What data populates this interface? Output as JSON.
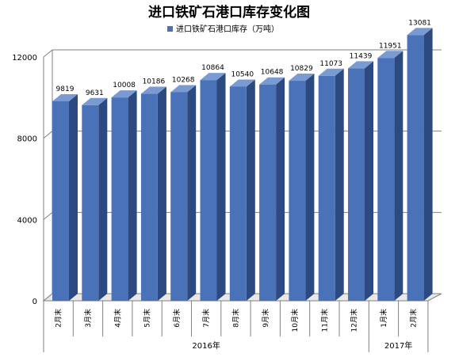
{
  "chart_data": {
    "type": "bar",
    "title": "进口铁矿石港口库存变化图",
    "legend": {
      "label": "进口铁矿石港口库存（万吨）",
      "position": "top"
    },
    "categories": [
      "2月末",
      "3月末",
      "4月末",
      "5月末",
      "6月末",
      "7月末",
      "8月末",
      "9月末",
      "10月末",
      "11月末",
      "12月末",
      "1月末",
      "2月末"
    ],
    "values": [
      9819,
      9631,
      10008,
      10186,
      10268,
      10864,
      10540,
      10648,
      10829,
      11073,
      11439,
      11951,
      13081
    ],
    "value_labels": [
      "9819",
      "9631",
      "10008",
      "10186",
      "10268",
      "10864",
      "10540",
      "10648",
      "10829",
      "11073",
      "11439",
      "11951",
      "13081"
    ],
    "groups": [
      {
        "label": "2016年",
        "count": 11
      },
      {
        "label": "2017年",
        "count": 2
      }
    ],
    "yticks": [
      0,
      4000,
      8000,
      12000
    ],
    "ylim": [
      0,
      12000
    ],
    "grid": true,
    "colors": {
      "bar_front": "#4a72b8",
      "bar_side": "#2c4a80",
      "bar_top": "#7a9ad2",
      "grid": "#808080",
      "text": "#000000"
    }
  }
}
